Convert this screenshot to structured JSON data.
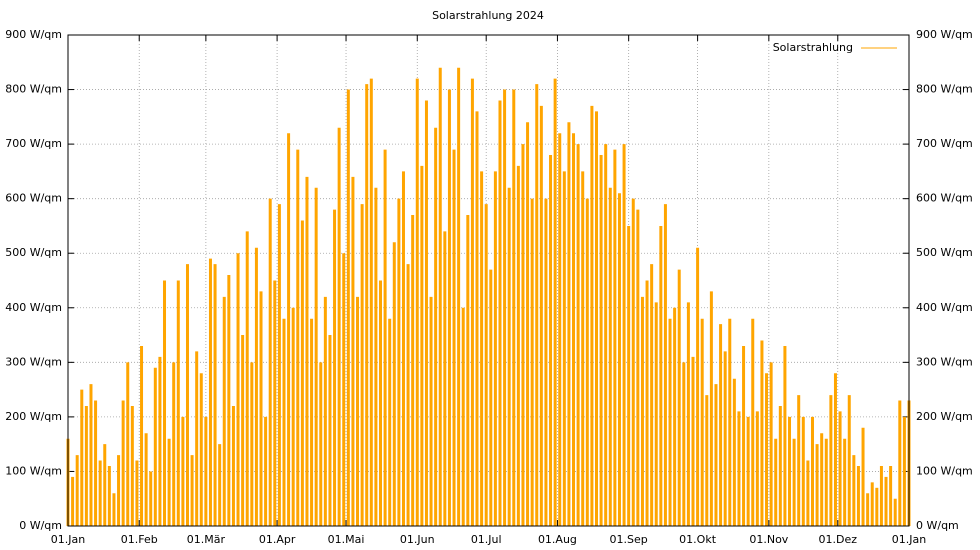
{
  "chart_data": {
    "type": "impulses",
    "title": "Solarstrahlung 2024",
    "xlim": [
      0,
      366
    ],
    "xticks": [
      {
        "value": 0,
        "label": "01.Jan"
      },
      {
        "value": 31,
        "label": "01.Feb"
      },
      {
        "value": 60,
        "label": "01.Mär"
      },
      {
        "value": 91,
        "label": "01.Apr"
      },
      {
        "value": 121,
        "label": "01.Mai"
      },
      {
        "value": 152,
        "label": "01.Jun"
      },
      {
        "value": 182,
        "label": "01.Jul"
      },
      {
        "value": 213,
        "label": "01.Aug"
      },
      {
        "value": 244,
        "label": "01.Sep"
      },
      {
        "value": 274,
        "label": "01.Okt"
      },
      {
        "value": 305,
        "label": "01.Nov"
      },
      {
        "value": 335,
        "label": "01.Dez"
      },
      {
        "value": 366,
        "label": "01.Jan"
      }
    ],
    "ylim": [
      0,
      900
    ],
    "yticks": [
      {
        "value": 0,
        "label": "0 W/qm"
      },
      {
        "value": 100,
        "label": "100 W/qm"
      },
      {
        "value": 200,
        "label": "200 W/qm"
      },
      {
        "value": 300,
        "label": "300 W/qm"
      },
      {
        "value": 400,
        "label": "400 W/qm"
      },
      {
        "value": 500,
        "label": "500 W/qm"
      },
      {
        "value": 600,
        "label": "600 W/qm"
      },
      {
        "value": 700,
        "label": "700 W/qm"
      },
      {
        "value": 800,
        "label": "800 W/qm"
      },
      {
        "value": 900,
        "label": "900 W/qm"
      }
    ],
    "grid": true,
    "legend": "top-right",
    "x": [
      0,
      2,
      4,
      6,
      8,
      10,
      12,
      14,
      16,
      18,
      20,
      22,
      24,
      26,
      28,
      30,
      32,
      34,
      36,
      38,
      40,
      42,
      44,
      46,
      48,
      50,
      52,
      54,
      56,
      58,
      60,
      62,
      64,
      66,
      68,
      70,
      72,
      74,
      76,
      78,
      80,
      82,
      84,
      86,
      88,
      90,
      92,
      94,
      96,
      98,
      100,
      102,
      104,
      106,
      108,
      110,
      112,
      114,
      116,
      118,
      120,
      122,
      124,
      126,
      128,
      130,
      132,
      134,
      136,
      138,
      140,
      142,
      144,
      146,
      148,
      150,
      152,
      154,
      156,
      158,
      160,
      162,
      164,
      166,
      168,
      170,
      172,
      174,
      176,
      178,
      180,
      182,
      184,
      186,
      188,
      190,
      192,
      194,
      196,
      198,
      200,
      202,
      204,
      206,
      208,
      210,
      212,
      214,
      216,
      218,
      220,
      222,
      224,
      226,
      228,
      230,
      232,
      234,
      236,
      238,
      240,
      242,
      244,
      246,
      248,
      250,
      252,
      254,
      256,
      258,
      260,
      262,
      264,
      266,
      268,
      270,
      272,
      274,
      276,
      278,
      280,
      282,
      284,
      286,
      288,
      290,
      292,
      294,
      296,
      298,
      300,
      302,
      304,
      306,
      308,
      310,
      312,
      314,
      316,
      318,
      320,
      322,
      324,
      326,
      328,
      330,
      332,
      334,
      336,
      338,
      340,
      342,
      344,
      346,
      348,
      350,
      352,
      354,
      356,
      358,
      360,
      362,
      364,
      366
    ],
    "series": [
      {
        "name": "Solarstrahlung",
        "color": "#ffa500",
        "values": [
          160,
          90,
          130,
          250,
          220,
          260,
          230,
          120,
          150,
          110,
          60,
          130,
          230,
          300,
          220,
          120,
          330,
          170,
          100,
          290,
          310,
          450,
          160,
          300,
          450,
          200,
          480,
          130,
          320,
          280,
          200,
          490,
          480,
          150,
          420,
          460,
          220,
          500,
          350,
          540,
          300,
          510,
          430,
          200,
          600,
          450,
          590,
          380,
          720,
          400,
          690,
          560,
          640,
          380,
          620,
          300,
          420,
          350,
          580,
          730,
          500,
          800,
          640,
          420,
          590,
          810,
          820,
          620,
          450,
          690,
          380,
          520,
          600,
          650,
          480,
          570,
          820,
          660,
          780,
          420,
          730,
          840,
          540,
          800,
          690,
          840,
          400,
          570,
          820,
          760,
          650,
          590,
          470,
          650,
          780,
          800,
          620,
          800,
          660,
          700,
          740,
          600,
          810,
          770,
          600,
          680,
          820,
          720,
          650,
          740,
          720,
          700,
          650,
          600,
          770,
          760,
          680,
          700,
          620,
          690,
          610,
          700,
          550,
          600,
          580,
          420,
          450,
          480,
          410,
          550,
          590,
          380,
          400,
          470,
          300,
          410,
          310,
          510,
          380,
          240,
          430,
          260,
          370,
          320,
          380,
          270,
          210,
          330,
          200,
          380,
          210,
          340,
          280,
          300,
          160,
          220,
          330,
          200,
          160,
          240,
          200,
          120,
          200,
          150,
          170,
          160,
          240,
          280,
          210,
          160,
          240,
          130,
          110,
          180,
          60,
          80,
          70,
          110,
          90,
          110,
          50,
          230,
          200,
          230
        ]
      }
    ]
  }
}
